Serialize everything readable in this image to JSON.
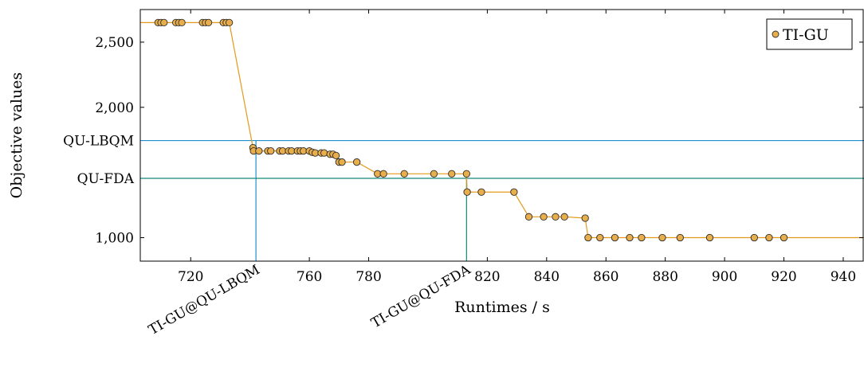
{
  "chart_data": {
    "type": "line",
    "xlabel": "Runtimes / s",
    "ylabel": "Objective values",
    "xlim": [
      703,
      947
    ],
    "ylim": [
      820,
      2750
    ],
    "xticks": [
      {
        "value": 720,
        "label": "720"
      },
      {
        "value": 760,
        "label": "760"
      },
      {
        "value": 780,
        "label": "780"
      },
      {
        "value": 820,
        "label": "820"
      },
      {
        "value": 840,
        "label": "840"
      },
      {
        "value": 860,
        "label": "860"
      },
      {
        "value": 880,
        "label": "880"
      },
      {
        "value": 900,
        "label": "900"
      },
      {
        "value": 920,
        "label": "920"
      },
      {
        "value": 940,
        "label": "940"
      }
    ],
    "yticks": [
      {
        "value": 1000,
        "label": "1,000"
      },
      {
        "value": 2000,
        "label": "2,000"
      },
      {
        "value": 2500,
        "label": "2,500"
      }
    ],
    "legend": {
      "position": "top-right"
    },
    "series": [
      {
        "name": "TI-GU",
        "color": "#e8a53a",
        "marker_fill": "#e8ae4c",
        "line_color": "#e39a1c",
        "line_start_x": 703,
        "line_end_x": 947,
        "x": [
          709,
          710,
          711,
          715,
          716,
          717,
          724,
          725,
          726,
          731,
          732,
          733,
          741.0,
          741.2,
          743,
          746,
          747,
          750,
          751,
          753,
          754,
          756,
          757,
          758,
          760,
          761,
          762,
          764,
          765,
          767,
          768,
          769,
          770,
          771,
          776,
          783,
          785,
          792,
          802,
          808,
          813,
          813.2,
          818,
          829,
          834,
          839,
          843,
          846,
          853,
          854,
          858,
          863,
          868,
          872,
          879,
          885,
          895,
          910,
          915,
          920
        ],
        "y": [
          2650,
          2650,
          2650,
          2650,
          2650,
          2650,
          2650,
          2650,
          2650,
          2650,
          2650,
          2650,
          1690,
          1665,
          1665,
          1665,
          1665,
          1665,
          1665,
          1665,
          1665,
          1665,
          1665,
          1665,
          1665,
          1655,
          1650,
          1650,
          1650,
          1640,
          1640,
          1630,
          1580,
          1580,
          1580,
          1490,
          1490,
          1490,
          1490,
          1490,
          1490,
          1350,
          1350,
          1350,
          1160,
          1160,
          1160,
          1160,
          1150,
          1000,
          1000,
          1000,
          1000,
          1000,
          1000,
          1000,
          1000,
          1000,
          1000,
          1000
        ]
      }
    ],
    "reference_lines": [
      {
        "label": "QU-LBQM",
        "y": 1745,
        "x_label": "TI-GU@QU-LBQM",
        "x": 742,
        "color": "#1f8ecd"
      },
      {
        "label": "QU-FDA",
        "y": 1455,
        "x_label": "TI-GU@QU-FDA",
        "x": 813,
        "color": "#13897a"
      }
    ]
  }
}
